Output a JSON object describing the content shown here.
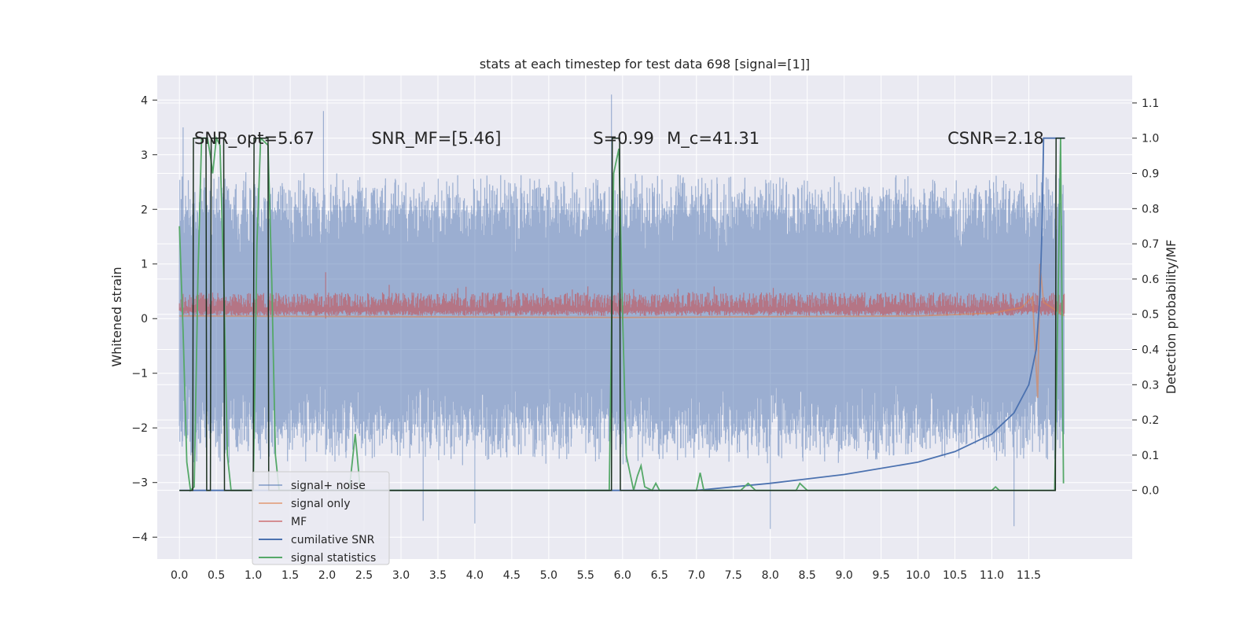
{
  "chart_data": {
    "type": "line",
    "title": "stats at each timestep for test data 698 [signal=[1]]",
    "ylabel_left": "Whitened strain",
    "ylabel_right": "Detection probability/MF",
    "xlim": [
      -0.3,
      12.9
    ],
    "ylim_left": [
      -4.4,
      4.45
    ],
    "ylim_right": [
      -0.195,
      1.178
    ],
    "x_ticks": [
      0.0,
      0.5,
      1.0,
      1.5,
      2.0,
      2.5,
      3.0,
      3.5,
      4.0,
      4.5,
      5.0,
      5.5,
      6.0,
      6.5,
      7.0,
      7.5,
      8.0,
      8.5,
      9.0,
      9.5,
      10.0,
      10.5,
      11.0,
      11.5
    ],
    "x_tick_labels": [
      "0.0",
      "0.5",
      "1.0",
      "1.5",
      "2.0",
      "2.5",
      "3.0",
      "3.5",
      "4.0",
      "4.5",
      "5.0",
      "5.5",
      "6.0",
      "6.5",
      "7.0",
      "7.5",
      "8.0",
      "8.5",
      "9.0",
      "9.5",
      "10.0",
      "10.5",
      "11.0",
      "11.5"
    ],
    "y_left_ticks": [
      -4,
      -3,
      -2,
      -1,
      0,
      1,
      2,
      3,
      4
    ],
    "y_left_tick_labels": [
      "−4",
      "−3",
      "−2",
      "−1",
      "0",
      "1",
      "2",
      "3",
      "4"
    ],
    "y_right_ticks": [
      0.0,
      0.1,
      0.2,
      0.3,
      0.4,
      0.5,
      0.6,
      0.7,
      0.8,
      0.9,
      1.0,
      1.1
    ],
    "y_right_tick_labels": [
      "0.0",
      "0.1",
      "0.2",
      "0.3",
      "0.4",
      "0.5",
      "0.6",
      "0.7",
      "0.8",
      "0.9",
      "1.0",
      "1.1"
    ],
    "annotations": [
      {
        "text": "SNR_opt=5.67",
        "x": 0.2,
        "y": 3.2
      },
      {
        "text": "SNR_MF=[5.46]",
        "x": 2.6,
        "y": 3.2
      },
      {
        "text": "S=0.99",
        "x": 5.6,
        "y": 3.2
      },
      {
        "text": "M_c=41.31",
        "x": 6.6,
        "y": 3.2
      },
      {
        "text": "CSNR=2.18",
        "x": 10.4,
        "y": 3.2
      }
    ],
    "legend_location": "lower left",
    "series": [
      {
        "name": "signal+ noise",
        "axis": "left",
        "color": "#4c72b0",
        "alpha": 0.5,
        "description": "noise band",
        "x_range": [
          0,
          11.98
        ],
        "envelope": [
          -2.5,
          2.5
        ],
        "peaks": [
          [
            5.85,
            4.1
          ],
          [
            1.95,
            3.8
          ],
          [
            0.05,
            3.5
          ],
          [
            3.3,
            -3.7
          ],
          [
            4.0,
            -3.75
          ],
          [
            8.0,
            -3.85
          ],
          [
            11.3,
            -3.8
          ]
        ]
      },
      {
        "name": "signal only",
        "axis": "left",
        "color": "#dd8452",
        "alpha": 0.6,
        "points": [
          [
            0,
            0.05
          ],
          [
            6,
            0.02
          ],
          [
            10,
            0.05
          ],
          [
            11,
            0.1
          ],
          [
            11.4,
            0.2
          ],
          [
            11.55,
            0.4
          ],
          [
            11.62,
            -1.45
          ],
          [
            11.65,
            1.0
          ],
          [
            11.7,
            0.3
          ],
          [
            11.98,
            0.05
          ]
        ]
      },
      {
        "name": "MF",
        "axis": "left",
        "color": "#c44e52",
        "alpha": 0.6,
        "band": [
          0.05,
          0.55
        ]
      },
      {
        "name": "cumilative SNR",
        "axis": "right",
        "color": "#4c72b0",
        "points": [
          [
            0,
            0
          ],
          [
            7,
            0
          ],
          [
            8,
            0.02
          ],
          [
            9,
            0.045
          ],
          [
            10,
            0.08
          ],
          [
            10.5,
            0.11
          ],
          [
            11,
            0.16
          ],
          [
            11.3,
            0.22
          ],
          [
            11.5,
            0.3
          ],
          [
            11.6,
            0.4
          ],
          [
            11.65,
            0.55
          ],
          [
            11.68,
            0.75
          ],
          [
            11.7,
            1.0
          ],
          [
            11.99,
            1.0
          ]
        ]
      },
      {
        "name": "signal statistics",
        "axis": "right",
        "color": "#55a868",
        "points": [
          [
            0,
            0.75
          ],
          [
            0.05,
            0.45
          ],
          [
            0.1,
            0.08
          ],
          [
            0.15,
            0.0
          ],
          [
            0.2,
            0.01
          ],
          [
            0.25,
            0.6
          ],
          [
            0.3,
            1.0
          ],
          [
            0.38,
            1.0
          ],
          [
            0.42,
            0.95
          ],
          [
            0.45,
            0.9
          ],
          [
            0.5,
            1.0
          ],
          [
            0.55,
            0.98
          ],
          [
            0.6,
            0.6
          ],
          [
            0.65,
            0.1
          ],
          [
            0.7,
            0.0
          ],
          [
            1.0,
            0.0
          ],
          [
            1.05,
            0.7
          ],
          [
            1.1,
            1.0
          ],
          [
            1.2,
            0.98
          ],
          [
            1.25,
            0.6
          ],
          [
            1.3,
            0.1
          ],
          [
            1.35,
            0.0
          ],
          [
            2.3,
            0.0
          ],
          [
            2.38,
            0.16
          ],
          [
            2.45,
            0.0
          ],
          [
            5.82,
            0.0
          ],
          [
            5.88,
            0.9
          ],
          [
            5.95,
            0.97
          ],
          [
            6.0,
            0.5
          ],
          [
            6.05,
            0.1
          ],
          [
            6.15,
            0.0
          ],
          [
            6.2,
            0.04
          ],
          [
            6.25,
            0.07
          ],
          [
            6.3,
            0.01
          ],
          [
            6.4,
            0.0
          ],
          [
            6.45,
            0.02
          ],
          [
            6.5,
            0.0
          ],
          [
            7.0,
            0.0
          ],
          [
            7.05,
            0.05
          ],
          [
            7.1,
            0.0
          ],
          [
            7.6,
            0.0
          ],
          [
            7.7,
            0.02
          ],
          [
            7.8,
            0.0
          ],
          [
            8.35,
            0.0
          ],
          [
            8.4,
            0.02
          ],
          [
            8.5,
            0.0
          ],
          [
            11.0,
            0.0
          ],
          [
            11.05,
            0.01
          ],
          [
            11.1,
            0.0
          ],
          [
            11.85,
            0.0
          ],
          [
            11.9,
            0.6
          ],
          [
            11.93,
            1.0
          ],
          [
            11.97,
            0.02
          ]
        ]
      },
      {
        "name": "",
        "axis": "right",
        "color": "#1c3020",
        "points": [
          [
            0,
            0
          ],
          [
            0.18,
            0
          ],
          [
            0.19,
            1
          ],
          [
            0.36,
            1
          ],
          [
            0.37,
            0
          ],
          [
            0.42,
            0
          ],
          [
            0.43,
            1
          ],
          [
            0.6,
            1
          ],
          [
            0.61,
            0
          ],
          [
            1.0,
            0
          ],
          [
            1.01,
            1
          ],
          [
            1.2,
            1
          ],
          [
            1.21,
            0
          ],
          [
            5.85,
            0
          ],
          [
            5.86,
            1
          ],
          [
            5.96,
            1
          ],
          [
            5.97,
            0
          ],
          [
            11.86,
            0
          ],
          [
            11.87,
            1
          ],
          [
            11.99,
            1
          ]
        ]
      }
    ]
  }
}
